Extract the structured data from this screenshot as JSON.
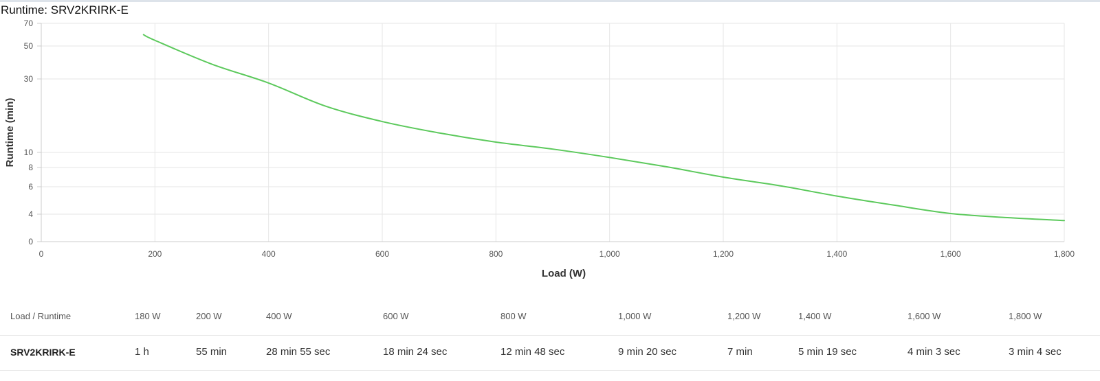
{
  "chart_data": {
    "type": "line",
    "title": "Runtime: SRV2KRIRK-E",
    "xlabel": "Load (W)",
    "ylabel": "Runtime (min)",
    "xlim": [
      0,
      1800
    ],
    "x_ticks": [
      0,
      200,
      400,
      600,
      800,
      1000,
      1200,
      1400,
      1600,
      1800
    ],
    "x_tick_labels": [
      "0",
      "200",
      "400",
      "600",
      "800",
      "1,000",
      "1,200",
      "1,400",
      "1,600",
      "1,800"
    ],
    "y_ticks": [
      0,
      4,
      6,
      8,
      10,
      30,
      50,
      70
    ],
    "y_tick_labels": [
      "0",
      "4",
      "6",
      "8",
      "10",
      "30",
      "50",
      "70"
    ],
    "grid": true,
    "legend": "none",
    "line_color": "#5cc95c",
    "series": [
      {
        "x": [
          180,
          200,
          300,
          400,
          500,
          600,
          700,
          800,
          900,
          1000,
          1100,
          1200,
          1300,
          1400,
          1500,
          1600,
          1700,
          1800
        ],
        "y": [
          60,
          55,
          39,
          28.9,
          22.6,
          18.4,
          15.3,
          12.8,
          10.9,
          9.33,
          8.1,
          7.0,
          6.1,
          5.32,
          4.66,
          4.05,
          3.5,
          3.07
        ]
      }
    ]
  },
  "table": {
    "header_label": "Load / Runtime",
    "columns": [
      "180 W",
      "200 W",
      "400 W",
      "600 W",
      "800 W",
      "1,000 W",
      "1,200 W",
      "1,400 W",
      "1,600 W",
      "1,800 W"
    ],
    "rows": [
      {
        "model": "SRV2KRIRK-E",
        "values": [
          "1 h",
          "55 min",
          "28 min 55 sec",
          "18 min 24 sec",
          "12 min 48 sec",
          "9 min 20 sec",
          "7 min",
          "5 min 19 sec",
          "4 min 3 sec",
          "3 min 4 sec"
        ]
      }
    ]
  }
}
